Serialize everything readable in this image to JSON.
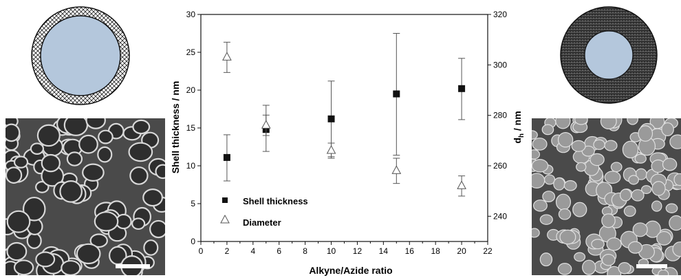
{
  "figure": {
    "left_schematic_icon": "core-shell-crosshatch-thin-icon",
    "right_schematic_icon": "core-shell-textured-thick-icon",
    "left_micrograph_icon": "sem-hollow-rings-icon",
    "right_micrograph_icon": "sem-dense-particles-icon",
    "core_color": "#b4c7dc"
  },
  "chart_data": {
    "type": "scatter",
    "xlabel": "Alkyne/Azide ratio",
    "ylabel": "Shell thickness / nm",
    "y2label_main": "d",
    "y2label_sub": "h",
    "y2label_unit": " / nm",
    "xlim": [
      0,
      22
    ],
    "ylim": [
      0,
      30
    ],
    "y2lim": [
      230,
      320
    ],
    "xticks": [
      "0",
      "2",
      "4",
      "6",
      "8",
      "10",
      "12",
      "14",
      "16",
      "18",
      "20",
      "22"
    ],
    "yticks": [
      "0",
      "5",
      "10",
      "15",
      "20",
      "25",
      "30"
    ],
    "y2ticks": [
      "240",
      "260",
      "280",
      "300",
      "320"
    ],
    "legend_position": "bottom-left",
    "series": [
      {
        "name": "Shell thickness",
        "axis": "left",
        "marker": "filled-square",
        "x": [
          2,
          5,
          10,
          15,
          20
        ],
        "y": [
          11.1,
          14.8,
          16.2,
          19.5,
          20.2
        ],
        "err_low": [
          8.0,
          11.9,
          11.2,
          11.4,
          16.1
        ],
        "err_high": [
          14.1,
          16.7,
          21.2,
          27.5,
          24.2
        ]
      },
      {
        "name": "Diameter",
        "axis": "right",
        "marker": "open-triangle",
        "x": [
          2,
          5,
          10,
          15,
          20
        ],
        "y": [
          303,
          276,
          266,
          258,
          252
        ],
        "err_low": [
          297,
          272,
          263,
          253,
          248
        ],
        "err_high": [
          309,
          284,
          269,
          263,
          256
        ]
      }
    ]
  }
}
